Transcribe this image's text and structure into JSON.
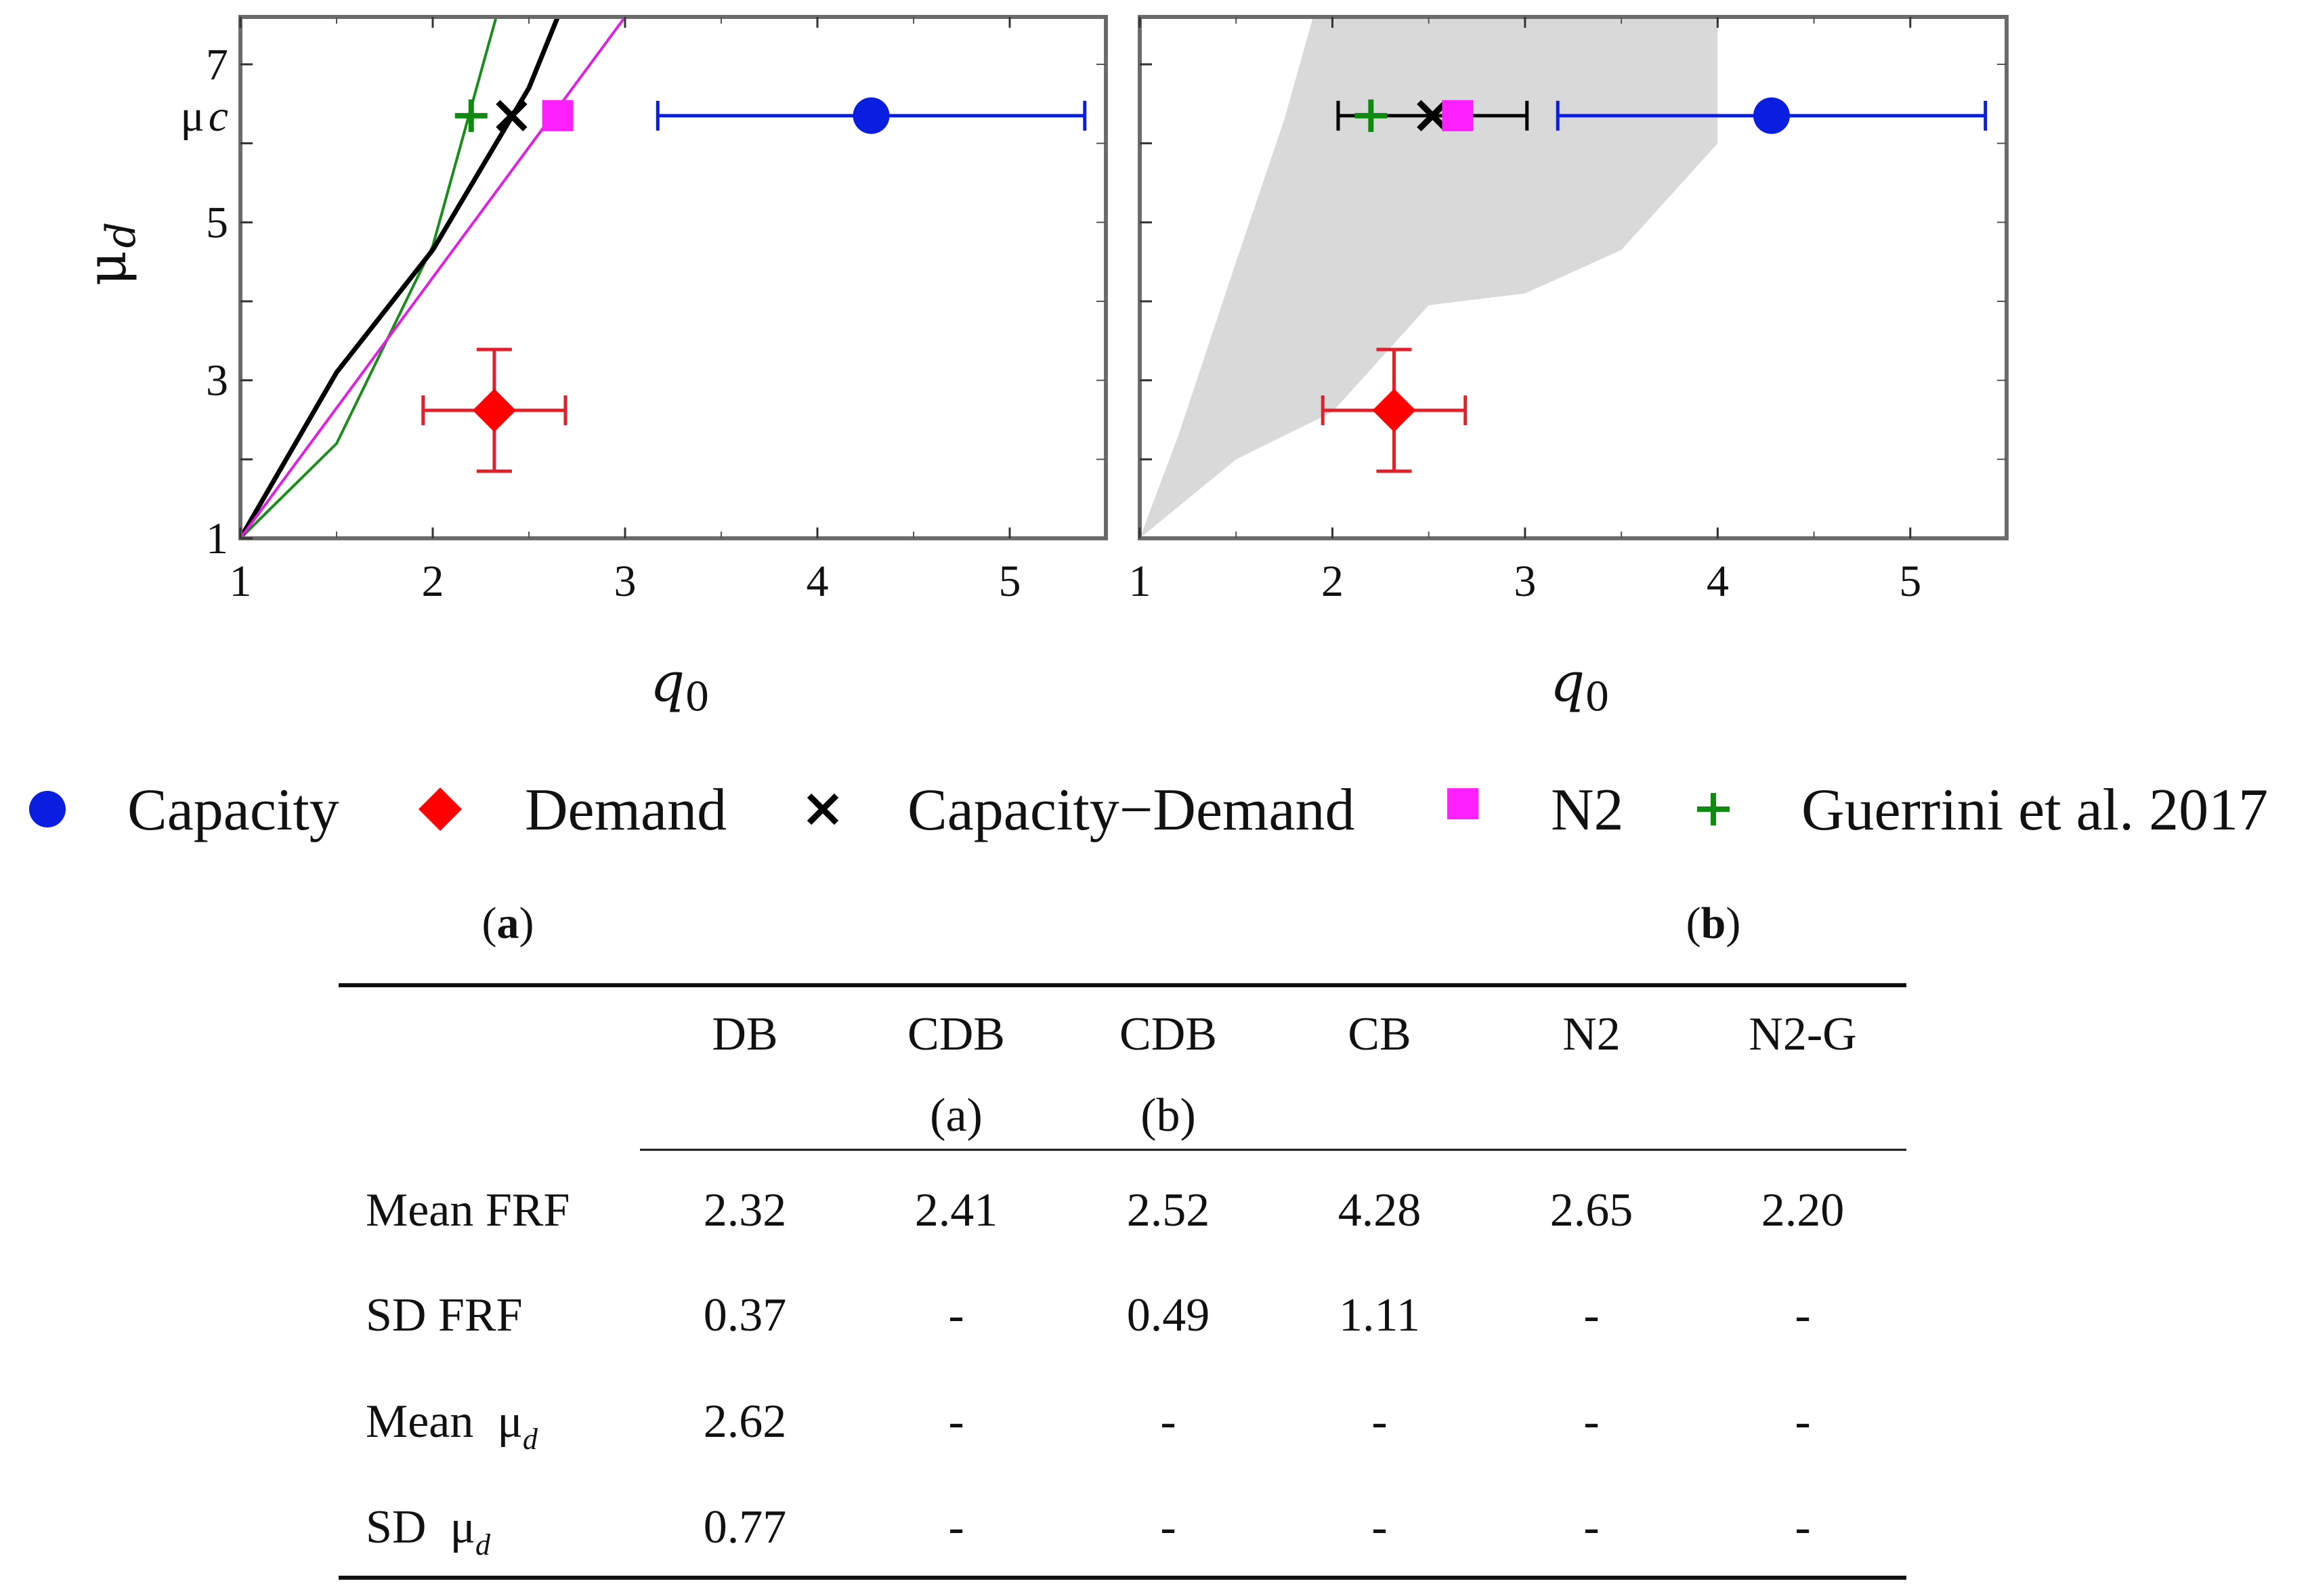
{
  "chart_data": [
    {
      "panel": "a",
      "type": "scatter",
      "xlabel": "q0",
      "ylabel": "μd",
      "xlim": [
        1,
        5.5
      ],
      "ylim": [
        1,
        7.6
      ],
      "xticks": [
        "1",
        "2",
        "3",
        "4",
        "5"
      ],
      "yticks": [
        "1",
        "3",
        "5",
        "7"
      ],
      "yticks_minor": [
        2,
        4,
        6
      ],
      "y_marker_label": {
        "text": "μc",
        "value": 6.35
      },
      "lines": [
        {
          "name": "green-curve",
          "color": "#1a8c1a",
          "x": [
            1,
            1.5,
            2,
            2.33
          ],
          "y": [
            1,
            2.2,
            4.7,
            7.6
          ]
        },
        {
          "name": "black-curve",
          "color": "#000000",
          "x": [
            1,
            1.5,
            2,
            2.5,
            2.65
          ],
          "y": [
            1,
            3.1,
            4.65,
            6.7,
            7.6
          ]
        },
        {
          "name": "magenta-curve",
          "color": "#e020e0",
          "x": [
            1,
            3
          ],
          "y": [
            1,
            7.6
          ]
        }
      ],
      "points": [
        {
          "series": "Capacity",
          "x": 4.28,
          "y": 6.35,
          "xerr": [
            3.17,
            5.39
          ]
        },
        {
          "series": "Demand",
          "x": 2.32,
          "y": 2.62,
          "xerr": [
            1.95,
            2.69
          ],
          "yerr": [
            1.85,
            3.39
          ]
        },
        {
          "series": "Capacity−Demand",
          "x": 2.41,
          "y": 6.35
        },
        {
          "series": "N2",
          "x": 2.65,
          "y": 6.35
        },
        {
          "series": "Guerrini et al. 2017",
          "x": 2.2,
          "y": 6.35
        }
      ]
    },
    {
      "panel": "b",
      "type": "scatter",
      "xlabel": "q0",
      "xlim": [
        1,
        5.5
      ],
      "ylim": [
        1,
        7.6
      ],
      "xticks": [
        "1",
        "2",
        "3",
        "4",
        "5"
      ],
      "yticks_minor": [
        2,
        3,
        4,
        5,
        6,
        7
      ],
      "shaded_region": {
        "color": "#d9d9d9",
        "x": [
          1,
          1.5,
          2,
          2.5,
          3,
          3.5,
          4,
          4,
          3.02,
          2.48,
          2.15,
          1.9,
          1.75,
          1.5,
          1.2,
          1
        ],
        "y": [
          1,
          2,
          2.6,
          3.95,
          4.1,
          4.65,
          6.0,
          7.6,
          7.6,
          7.6,
          7.6,
          7.6,
          6.3,
          4.5,
          2.3,
          1
        ]
      },
      "points": [
        {
          "series": "Capacity",
          "x": 4.28,
          "y": 6.35,
          "xerr": [
            3.17,
            5.39
          ]
        },
        {
          "series": "Demand",
          "x": 2.32,
          "y": 2.62,
          "xerr": [
            1.95,
            2.69
          ],
          "yerr": [
            1.85,
            3.39
          ]
        },
        {
          "series": "Capacity−Demand",
          "x": 2.52,
          "y": 6.35,
          "xerr": [
            2.03,
            3.01
          ]
        },
        {
          "series": "N2",
          "x": 2.65,
          "y": 6.35
        },
        {
          "series": "Guerrini et al. 2017",
          "x": 2.2,
          "y": 6.35
        }
      ]
    }
  ],
  "legend": [
    {
      "label": "Capacity",
      "marker": "circle",
      "color": "#0a1ee0"
    },
    {
      "label": "Demand",
      "marker": "diamond",
      "color": "#ff0000"
    },
    {
      "label": "Capacity−Demand",
      "marker": "cross",
      "color": "#000000"
    },
    {
      "label": "N2",
      "marker": "square",
      "color": "#ff20ff"
    },
    {
      "label": "Guerrini et al. 2017",
      "marker": "plus",
      "color": "#118a11"
    }
  ],
  "colors": {
    "capacity": "#0a1ee0",
    "demand": "#ff0000",
    "demand_errorbar": "#e0202a",
    "capdem": "#000000",
    "n2": "#ff20ff",
    "guerrini": "#118a11",
    "frame": "#6b6b6b"
  },
  "panel_labels": {
    "a": "a",
    "b": "b",
    "open": "(",
    "close": ")"
  },
  "table": {
    "headers": [
      {
        "label": "",
        "sub": ""
      },
      {
        "label": "DB",
        "sub": ""
      },
      {
        "label": "CDB",
        "sub": "(a)"
      },
      {
        "label": "CDB",
        "sub": "(b)"
      },
      {
        "label": "CB",
        "sub": ""
      },
      {
        "label": "N2",
        "sub": ""
      },
      {
        "label": "N2-G",
        "sub": ""
      }
    ],
    "rows": [
      {
        "label": "Mean FRF",
        "values": [
          "2.32",
          "2.41",
          "2.52",
          "4.28",
          "2.65",
          "2.20"
        ]
      },
      {
        "label": "SD FRF",
        "values": [
          "0.37",
          "-",
          "0.49",
          "1.11",
          "-",
          "-"
        ]
      },
      {
        "label": "Mean  μ",
        "sub": "d",
        "values": [
          "2.62",
          "-",
          "-",
          "-",
          "-",
          "-"
        ]
      },
      {
        "label": "SD  μ",
        "sub": "d",
        "values": [
          "0.77",
          "-",
          "-",
          "-",
          "-",
          "-"
        ]
      }
    ]
  }
}
